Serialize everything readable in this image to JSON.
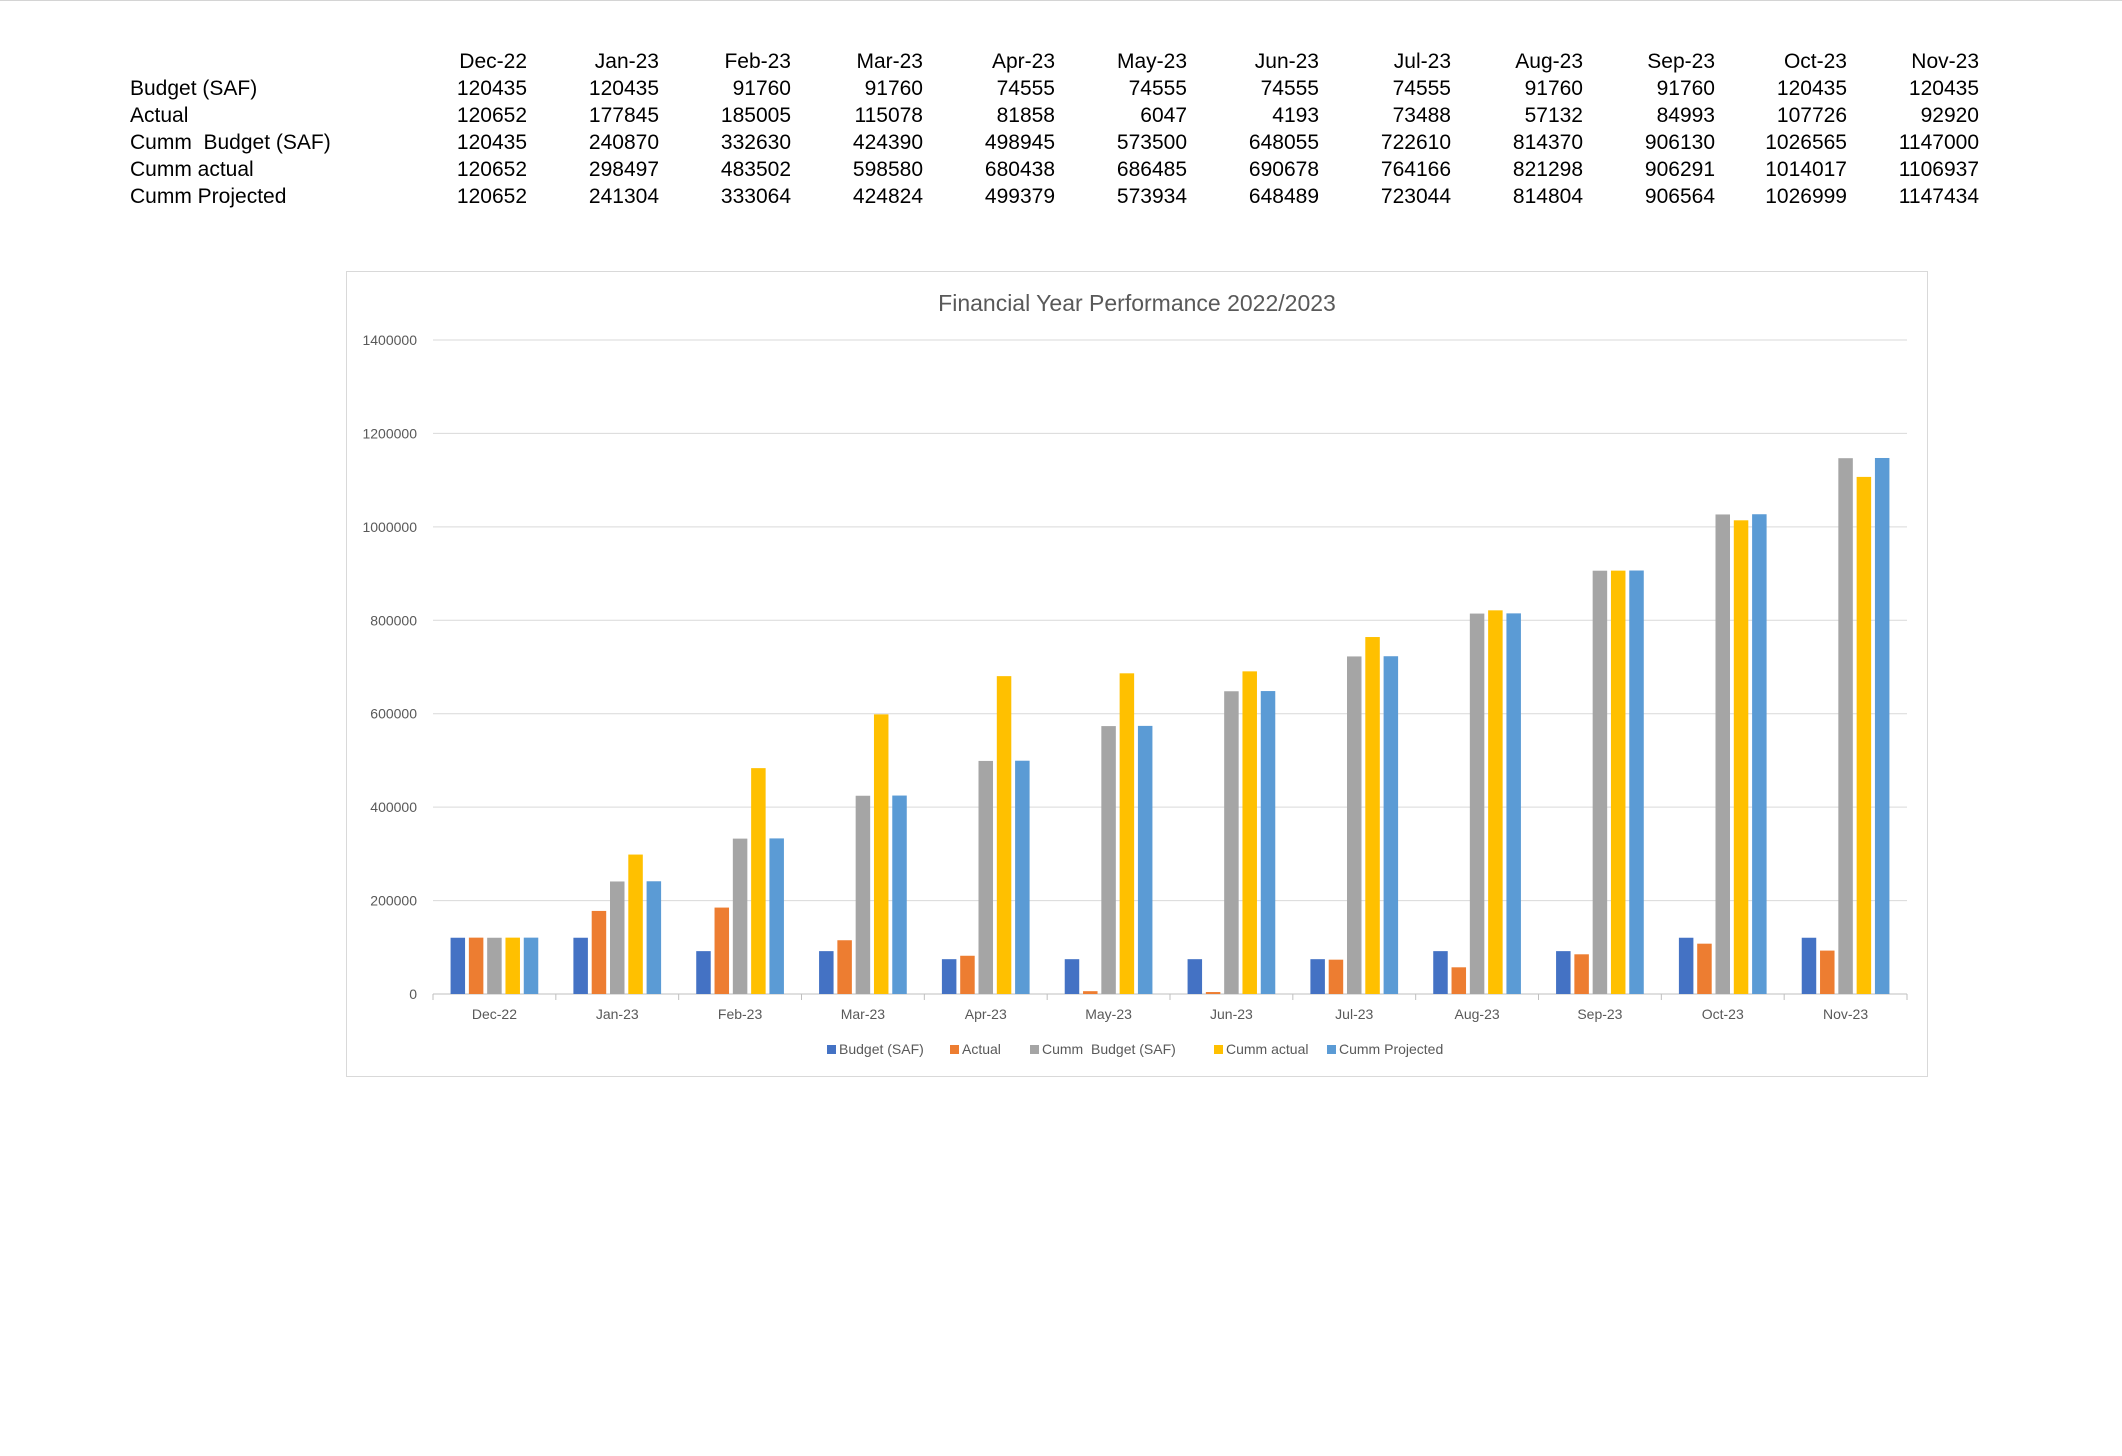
{
  "table": {
    "headers": [
      "Dec-22",
      "Jan-23",
      "Feb-23",
      "Mar-23",
      "Apr-23",
      "May-23",
      "Jun-23",
      "Jul-23",
      "Aug-23",
      "Sep-23",
      "Oct-23",
      "Nov-23"
    ],
    "rows": [
      {
        "label": "Budget (SAF)",
        "values": [
          "120435",
          "120435",
          "91760",
          "91760",
          "74555",
          "74555",
          "74555",
          "74555",
          "91760",
          "91760",
          "120435",
          "120435"
        ]
      },
      {
        "label": "Actual",
        "values": [
          "120652",
          "177845",
          "185005",
          "115078",
          "81858",
          "6047",
          "4193",
          "73488",
          "57132",
          "84993",
          "107726",
          "92920"
        ]
      },
      {
        "label": "Cumm  Budget (SAF)",
        "values": [
          "120435",
          "240870",
          "332630",
          "424390",
          "498945",
          "573500",
          "648055",
          "722610",
          "814370",
          "906130",
          "1026565",
          "1147000"
        ]
      },
      {
        "label": "Cumm actual",
        "values": [
          "120652",
          "298497",
          "483502",
          "598580",
          "680438",
          "686485",
          "690678",
          "764166",
          "821298",
          "906291",
          "1014017",
          "1106937"
        ]
      },
      {
        "label": "Cumm Projected",
        "values": [
          "120652",
          "241304",
          "333064",
          "424824",
          "499379",
          "573934",
          "648489",
          "723044",
          "814804",
          "906564",
          "1026999",
          "1147434"
        ]
      }
    ]
  },
  "chart_data": {
    "type": "bar",
    "title": "Financial Year Performance 2022/2023",
    "xlabel": "",
    "ylabel": "",
    "ylim": [
      0,
      1400000
    ],
    "yticks": [
      0,
      200000,
      400000,
      600000,
      800000,
      1000000,
      1200000,
      1400000
    ],
    "grid": true,
    "legend_position": "bottom",
    "categories": [
      "Dec-22",
      "Jan-23",
      "Feb-23",
      "Mar-23",
      "Apr-23",
      "May-23",
      "Jun-23",
      "Jul-23",
      "Aug-23",
      "Sep-23",
      "Oct-23",
      "Nov-23"
    ],
    "series": [
      {
        "name": "Budget (SAF)",
        "color": "#4472C4",
        "values": [
          120435,
          120435,
          91760,
          91760,
          74555,
          74555,
          74555,
          74555,
          91760,
          91760,
          120435,
          120435
        ]
      },
      {
        "name": "Actual",
        "color": "#ED7D31",
        "values": [
          120652,
          177845,
          185005,
          115078,
          81858,
          6047,
          4193,
          73488,
          57132,
          84993,
          107726,
          92920
        ]
      },
      {
        "name": "Cumm  Budget (SAF)",
        "color": "#A5A5A5",
        "values": [
          120435,
          240870,
          332630,
          424390,
          498945,
          573500,
          648055,
          722610,
          814370,
          906130,
          1026565,
          1147000
        ]
      },
      {
        "name": "Cumm actual",
        "color": "#FFC000",
        "values": [
          120652,
          298497,
          483502,
          598580,
          680438,
          686485,
          690678,
          764166,
          821298,
          906291,
          1014017,
          1106937
        ]
      },
      {
        "name": "Cumm Projected",
        "color": "#5B9BD5",
        "values": [
          120652,
          241304,
          333064,
          424824,
          499379,
          573934,
          648489,
          723044,
          814804,
          906564,
          1026999,
          1147434
        ]
      }
    ]
  },
  "colors": {
    "gridline": "#D9D9D9",
    "axis": "#BFBFBF",
    "text": "#595959"
  }
}
